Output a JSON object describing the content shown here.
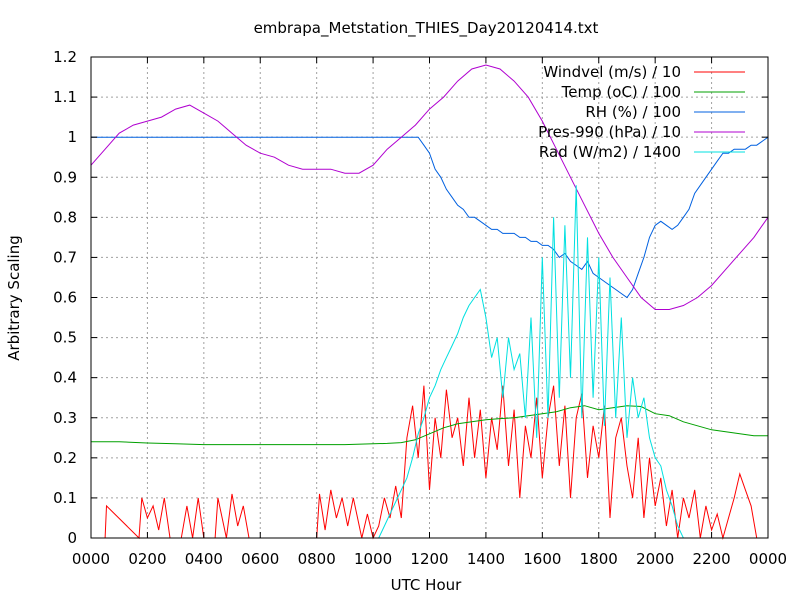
{
  "chart_data": {
    "type": "line",
    "title": "embrapa_Metstation_THIES_Day20120414.txt",
    "xlabel": "UTC Hour",
    "ylabel": "Arbitrary Scaling",
    "xlim": [
      0,
      24
    ],
    "ylim": [
      0,
      1.2
    ],
    "x_ticks": [
      "0000",
      "0200",
      "0400",
      "0600",
      "0800",
      "1000",
      "1200",
      "1400",
      "1600",
      "1800",
      "2000",
      "2200",
      "0000"
    ],
    "y_ticks": [
      "0",
      "0.1",
      "0.2",
      "0.3",
      "0.4",
      "0.5",
      "0.6",
      "0.7",
      "0.8",
      "0.9",
      "1",
      "1.1",
      "1.2"
    ],
    "grid": true,
    "legend_position": "top-right",
    "series": [
      {
        "name": "Windvel (m/s) / 10",
        "color": "#ff0000",
        "x": [
          0,
          0.5,
          0.55,
          1.7,
          1.8,
          2.0,
          2.2,
          2.4,
          2.6,
          2.8,
          3.2,
          3.4,
          3.6,
          3.8,
          4.0,
          4.4,
          4.5,
          4.8,
          5.0,
          5.2,
          5.4,
          5.6,
          6.0,
          7.0,
          8.0,
          8.1,
          8.3,
          8.5,
          8.7,
          8.9,
          9.1,
          9.3,
          9.6,
          9.8,
          10.0,
          10.2,
          10.4,
          10.6,
          10.8,
          11.0,
          11.2,
          11.4,
          11.6,
          11.8,
          12.0,
          12.2,
          12.4,
          12.6,
          12.8,
          13.0,
          13.2,
          13.4,
          13.6,
          13.8,
          14.0,
          14.2,
          14.4,
          14.6,
          14.8,
          15.0,
          15.2,
          15.4,
          15.6,
          15.8,
          16.0,
          16.2,
          16.4,
          16.6,
          16.8,
          17.0,
          17.2,
          17.4,
          17.6,
          17.8,
          18.0,
          18.2,
          18.4,
          18.6,
          18.8,
          19.0,
          19.2,
          19.4,
          19.6,
          19.8,
          20.0,
          20.2,
          20.4,
          20.6,
          20.8,
          21.0,
          21.2,
          21.4,
          21.6,
          21.8,
          22.0,
          22.2,
          22.4,
          22.6,
          22.8,
          23.0,
          23.2,
          23.4,
          23.6
        ],
        "y": [
          0,
          0,
          0.08,
          0,
          0.1,
          0.05,
          0.08,
          0.02,
          0.1,
          0,
          0,
          0.08,
          0,
          0.1,
          0,
          0,
          0.1,
          0,
          0.11,
          0.03,
          0.08,
          0,
          0,
          0,
          0,
          0.11,
          0.02,
          0.12,
          0.05,
          0.1,
          0.03,
          0.1,
          0,
          0.06,
          0,
          0.03,
          0.1,
          0.05,
          0.13,
          0.05,
          0.25,
          0.33,
          0.2,
          0.38,
          0.12,
          0.3,
          0.2,
          0.37,
          0.25,
          0.3,
          0.18,
          0.35,
          0.2,
          0.32,
          0.15,
          0.3,
          0.22,
          0.38,
          0.18,
          0.32,
          0.1,
          0.28,
          0.2,
          0.35,
          0.15,
          0.3,
          0.38,
          0.18,
          0.33,
          0.1,
          0.3,
          0.36,
          0.15,
          0.28,
          0.2,
          0.33,
          0.05,
          0.25,
          0.3,
          0.18,
          0.1,
          0.25,
          0.05,
          0.2,
          0.08,
          0.15,
          0.03,
          0.12,
          0,
          0.1,
          0.05,
          0.12,
          0,
          0.08,
          0.02,
          0.06,
          0,
          0.05,
          0.1,
          0.16,
          0.12,
          0.08,
          0
        ]
      },
      {
        "name": "Temp (oC) / 100",
        "color": "#00a000",
        "x": [
          0,
          1,
          2,
          3,
          4,
          5,
          6,
          7,
          8,
          9,
          10,
          10.5,
          11,
          11.5,
          12,
          12.5,
          13,
          13.5,
          14,
          14.5,
          15,
          15.5,
          16,
          16.5,
          17,
          17.5,
          18,
          18.5,
          19,
          19.5,
          20,
          20.5,
          21,
          21.5,
          22,
          22.5,
          23,
          23.5,
          24
        ],
        "y": [
          0.24,
          0.24,
          0.237,
          0.235,
          0.233,
          0.233,
          0.233,
          0.233,
          0.233,
          0.233,
          0.235,
          0.236,
          0.238,
          0.245,
          0.26,
          0.275,
          0.285,
          0.29,
          0.295,
          0.298,
          0.3,
          0.305,
          0.31,
          0.315,
          0.325,
          0.33,
          0.32,
          0.325,
          0.33,
          0.328,
          0.31,
          0.305,
          0.29,
          0.28,
          0.27,
          0.265,
          0.26,
          0.255,
          0.255
        ]
      },
      {
        "name": "RH (%) / 100",
        "color": "#0060e0",
        "x": [
          0,
          11.6,
          11.8,
          12,
          12.2,
          12.4,
          12.6,
          12.8,
          13,
          13.2,
          13.4,
          13.6,
          13.8,
          14,
          14.2,
          14.4,
          14.6,
          14.8,
          15,
          15.2,
          15.4,
          15.6,
          15.8,
          16,
          16.2,
          16.4,
          16.6,
          16.8,
          17,
          17.2,
          17.4,
          17.6,
          17.8,
          18,
          18.2,
          18.4,
          18.6,
          18.8,
          19,
          19.2,
          19.4,
          19.6,
          19.8,
          20,
          20.2,
          20.4,
          20.6,
          20.8,
          21,
          21.2,
          21.4,
          21.6,
          21.8,
          22,
          22.2,
          22.4,
          22.6,
          22.8,
          23,
          23.2,
          23.4,
          23.6,
          24
        ],
        "y": [
          1,
          1,
          0.98,
          0.96,
          0.92,
          0.9,
          0.87,
          0.85,
          0.83,
          0.82,
          0.8,
          0.8,
          0.79,
          0.78,
          0.77,
          0.77,
          0.76,
          0.76,
          0.76,
          0.75,
          0.75,
          0.74,
          0.74,
          0.73,
          0.73,
          0.72,
          0.7,
          0.71,
          0.69,
          0.68,
          0.67,
          0.69,
          0.66,
          0.65,
          0.64,
          0.63,
          0.62,
          0.61,
          0.6,
          0.62,
          0.66,
          0.7,
          0.75,
          0.78,
          0.79,
          0.78,
          0.77,
          0.78,
          0.8,
          0.82,
          0.86,
          0.88,
          0.9,
          0.92,
          0.94,
          0.96,
          0.96,
          0.97,
          0.97,
          0.97,
          0.98,
          0.98,
          1
        ]
      },
      {
        "name": "Pres-990 (hPa) / 10",
        "color": "#b000d0",
        "x": [
          0,
          0.5,
          1,
          1.5,
          2,
          2.5,
          3,
          3.5,
          4,
          4.5,
          5,
          5.5,
          6,
          6.5,
          7,
          7.5,
          8,
          8.5,
          9,
          9.5,
          10,
          10.5,
          11,
          11.5,
          12,
          12.5,
          13,
          13.5,
          14,
          14.5,
          15,
          15.5,
          16,
          16.5,
          17,
          17.5,
          18,
          18.5,
          19,
          19.5,
          20,
          20.5,
          21,
          21.5,
          22,
          22.5,
          23,
          23.5,
          24
        ],
        "y": [
          0.93,
          0.97,
          1.01,
          1.03,
          1.04,
          1.05,
          1.07,
          1.08,
          1.06,
          1.04,
          1.01,
          0.98,
          0.96,
          0.95,
          0.93,
          0.92,
          0.92,
          0.92,
          0.91,
          0.91,
          0.93,
          0.97,
          1.0,
          1.03,
          1.07,
          1.1,
          1.14,
          1.17,
          1.18,
          1.17,
          1.14,
          1.1,
          1.04,
          0.97,
          0.9,
          0.83,
          0.76,
          0.7,
          0.65,
          0.6,
          0.57,
          0.57,
          0.58,
          0.6,
          0.63,
          0.67,
          0.71,
          0.75,
          0.8
        ]
      },
      {
        "name": "Rad (W/m2) / 1400",
        "color": "#00e0e0",
        "x": [
          0,
          10.2,
          10.4,
          10.6,
          10.8,
          11,
          11.2,
          11.4,
          11.6,
          11.8,
          12,
          12.2,
          12.4,
          12.6,
          12.8,
          13,
          13.2,
          13.4,
          13.6,
          13.8,
          14,
          14.2,
          14.4,
          14.6,
          14.8,
          15,
          15.2,
          15.4,
          15.6,
          15.8,
          16,
          16.2,
          16.4,
          16.6,
          16.8,
          17,
          17.2,
          17.4,
          17.6,
          17.8,
          18,
          18.2,
          18.4,
          18.6,
          18.8,
          19,
          19.2,
          19.4,
          19.6,
          19.8,
          20,
          20.2,
          20.4,
          20.6,
          20.8,
          21,
          24
        ],
        "y": [
          0,
          0,
          0.03,
          0.06,
          0.09,
          0.12,
          0.15,
          0.2,
          0.26,
          0.3,
          0.35,
          0.38,
          0.42,
          0.45,
          0.48,
          0.51,
          0.55,
          0.58,
          0.6,
          0.62,
          0.55,
          0.45,
          0.5,
          0.35,
          0.5,
          0.42,
          0.46,
          0.3,
          0.55,
          0.25,
          0.7,
          0.3,
          0.8,
          0.35,
          0.78,
          0.4,
          0.88,
          0.3,
          0.75,
          0.35,
          0.7,
          0.28,
          0.65,
          0.3,
          0.55,
          0.25,
          0.4,
          0.3,
          0.35,
          0.25,
          0.2,
          0.18,
          0.12,
          0.08,
          0.03,
          0,
          0
        ]
      }
    ]
  }
}
